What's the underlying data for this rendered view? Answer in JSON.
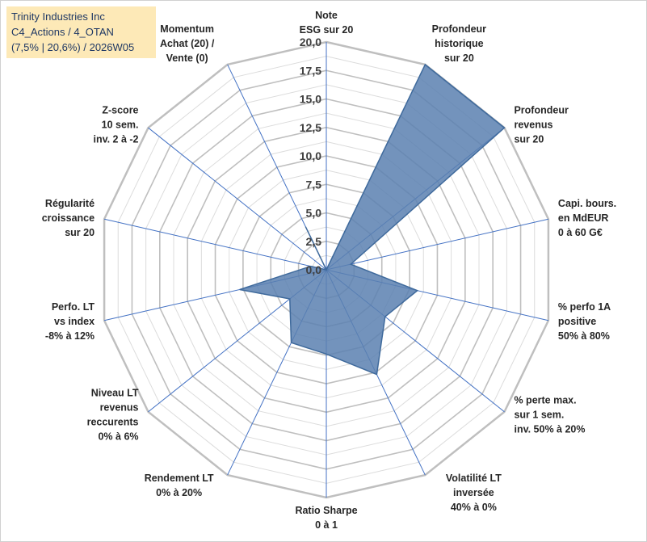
{
  "title_box": {
    "line1": "Trinity Industries Inc",
    "line2": "C4_Actions / 4_OTAN",
    "line3": "(7,5% | 20,6%) / 2026W05"
  },
  "chart_data": {
    "type": "radar",
    "rmin": 0,
    "rmax": 20,
    "tick_step": 2.5,
    "tick_labels": [
      "0,0",
      "2,5",
      "5,0",
      "7,5",
      "10,0",
      "12,5",
      "15,0",
      "17,5",
      "20,0"
    ],
    "minor_rings": true,
    "axes": [
      {
        "label": [
          "Note",
          "ESG sur 20"
        ],
        "value": 0
      },
      {
        "label": [
          "Profondeur",
          "historique",
          "sur 20"
        ],
        "value": 20
      },
      {
        "label": [
          "Profondeur",
          "revenus",
          "sur 20"
        ],
        "value": 20
      },
      {
        "label": [
          "Capi. bours.",
          "en MdEUR",
          "0 à 60 G€"
        ],
        "value": 2.2
      },
      {
        "label": [
          "% perfo 1A",
          "positive",
          "50% à 80%"
        ],
        "value": 8.2
      },
      {
        "label": [
          "% perte max.",
          "sur 1 sem.",
          "inv. 50% à 20%"
        ],
        "value": 6.6
      },
      {
        "label": [
          "Volatilité LT",
          "inversée",
          "40% à 0%"
        ],
        "value": 10.2
      },
      {
        "label": [
          "Ratio Sharpe",
          "0 à 1"
        ],
        "value": 7.4
      },
      {
        "label": [
          "Rendement LT",
          "0% à 20%"
        ],
        "value": 7.1
      },
      {
        "label": [
          "Niveau LT",
          "revenus",
          "reccurents",
          "0% à 6%"
        ],
        "value": 4.1
      },
      {
        "label": [
          "Perfo. LT",
          "vs index",
          "-8% à 12%"
        ],
        "value": 7.8
      },
      {
        "label": [
          "Régularité",
          "croissance",
          "sur 20"
        ],
        "value": 1.4
      },
      {
        "label": [
          "Z-score",
          "10 sem.",
          "inv. 2 à -2"
        ],
        "value": 0
      },
      {
        "label": [
          "Momentum",
          "Achat (20) /",
          "Vente (0)"
        ],
        "value": 4.2
      }
    ],
    "colors": {
      "fill": "#5b80b0",
      "stroke": "#3f6a9c",
      "major_ring": "#bfbfbf",
      "minor_ring": "#dcdcdc",
      "spoke": "#4472c4"
    }
  }
}
